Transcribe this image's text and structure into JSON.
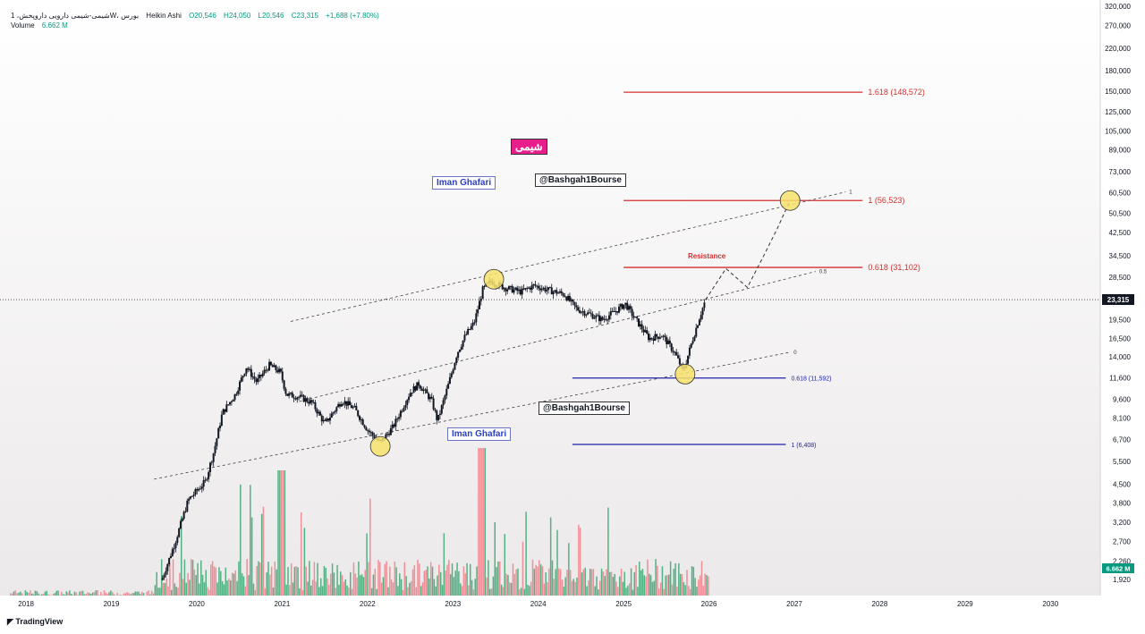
{
  "header": {
    "symbol": "شیمی-شیمی دارویی داروپخش، 1W، بورس",
    "chart_style": "Heikin Ashi",
    "open": "O20,546",
    "high": "H24,050",
    "low": "L20,546",
    "close": "C23,315",
    "change": "+1,688 (+7.80%)",
    "volume_label": "Volume",
    "volume_value": "6.662 M"
  },
  "watermarks": {
    "name_top": "Iman Ghafari",
    "handle_top": "@Bashgah1Bourse",
    "persian_badge": "شیمی",
    "handle_bottom": "@Bashgah1Bourse",
    "name_bottom": "Iman Ghafari"
  },
  "annotations": {
    "resistance": "Resistance",
    "channel_upper": "1",
    "channel_mid": "0.5",
    "channel_lower": "0"
  },
  "branding": {
    "logo": "TradingView"
  },
  "colors": {
    "up": "#089981",
    "down": "#f23645",
    "fib_red": "#d32f2f",
    "fib_blue": "#1e22aa",
    "circle": "#f7e26b",
    "price_tag": "#131722",
    "volume_tag": "#089981"
  },
  "chart_data": {
    "type": "line",
    "title": "",
    "scale": "log",
    "ylim": [
      1700,
      330000
    ],
    "xlim": [
      2017.8,
      2030.5
    ],
    "grid": false,
    "x_ticks": [
      "2018",
      "2019",
      "2020",
      "2021",
      "2022",
      "2023",
      "2024",
      "2025",
      "2026",
      "2027",
      "2028",
      "2029",
      "2030"
    ],
    "y_ticks": [
      "320,000",
      "270,000",
      "220,000",
      "180,000",
      "150,000",
      "125,000",
      "105,000",
      "89,000",
      "73,000",
      "60,500",
      "50,500",
      "42,500",
      "34,500",
      "28,500",
      "23,600",
      "19,500",
      "16,500",
      "14,000",
      "11,600",
      "9,600",
      "8,100",
      "6,700",
      "5,500",
      "4,500",
      "3,800",
      "3,200",
      "2,700",
      "2,260",
      "1,920"
    ],
    "last_price": 23315,
    "last_price_label": "23,315",
    "volume_label": "6.662 M",
    "series": [
      {
        "values": [
          [
            2019.6,
            1950
          ],
          [
            2019.75,
            2700
          ],
          [
            2019.9,
            3900
          ],
          [
            2020.1,
            4600
          ],
          [
            2020.2,
            6000
          ],
          [
            2020.3,
            8500
          ],
          [
            2020.45,
            10000
          ],
          [
            2020.58,
            12800
          ],
          [
            2020.7,
            11200
          ],
          [
            2020.85,
            13000
          ],
          [
            2020.98,
            12200
          ],
          [
            2021.05,
            10000
          ],
          [
            2021.2,
            9800
          ],
          [
            2021.35,
            9300
          ],
          [
            2021.5,
            7700
          ],
          [
            2021.7,
            9500
          ],
          [
            2021.85,
            8800
          ],
          [
            2022.0,
            7300
          ],
          [
            2022.15,
            6500
          ],
          [
            2022.3,
            7500
          ],
          [
            2022.5,
            10200
          ],
          [
            2022.6,
            11000
          ],
          [
            2022.75,
            9500
          ],
          [
            2022.82,
            7900
          ],
          [
            2022.95,
            11000
          ],
          [
            2023.05,
            14500
          ],
          [
            2023.15,
            17000
          ],
          [
            2023.25,
            19000
          ],
          [
            2023.35,
            25500
          ],
          [
            2023.45,
            27500
          ],
          [
            2023.6,
            26000
          ],
          [
            2023.8,
            25000
          ],
          [
            2023.95,
            26500
          ],
          [
            2024.1,
            25500
          ],
          [
            2024.3,
            24500
          ],
          [
            2024.45,
            21500
          ],
          [
            2024.6,
            20500
          ],
          [
            2024.75,
            19500
          ],
          [
            2024.9,
            21000
          ],
          [
            2025.02,
            22500
          ],
          [
            2025.12,
            20000
          ],
          [
            2025.3,
            16500
          ],
          [
            2025.45,
            17000
          ],
          [
            2025.6,
            14500
          ],
          [
            2025.7,
            12300
          ],
          [
            2025.8,
            16000
          ],
          [
            2025.88,
            19500
          ],
          [
            2025.96,
            23315
          ]
        ]
      }
    ],
    "projection_values": [
      [
        2025.96,
        23315
      ],
      [
        2026.2,
        30800
      ],
      [
        2026.45,
        26000
      ],
      [
        2026.65,
        35000
      ],
      [
        2026.8,
        44000
      ],
      [
        2026.95,
        56523
      ]
    ],
    "fib_levels": [
      {
        "label": "1.618 (148,572)",
        "value": 148572,
        "color": "#d32f2f",
        "from": 2025.0,
        "to": 2027.8
      },
      {
        "label": "1 (56,523)",
        "value": 56523,
        "color": "#d32f2f",
        "from": 2025.0,
        "to": 2027.8
      },
      {
        "label": "0.618 (31,102)",
        "value": 31102,
        "color": "#d32f2f",
        "from": 2025.0,
        "to": 2027.8
      },
      {
        "label": "0.618 (11,592)",
        "value": 11592,
        "color": "#1e22aa",
        "from": 2024.4,
        "to": 2026.9
      },
      {
        "label": "1 (6,408)",
        "value": 6408,
        "color": "#1e22aa",
        "from": 2024.4,
        "to": 2026.9
      }
    ],
    "channel_lines": [
      {
        "x1": 2021.1,
        "y1": 19200,
        "x2": 2027.6,
        "y2": 61000,
        "label": "1"
      },
      {
        "x1": 2021.2,
        "y1": 9400,
        "x2": 2027.25,
        "y2": 30000,
        "label": "0.5"
      },
      {
        "x1": 2019.5,
        "y1": 4700,
        "x2": 2026.95,
        "y2": 14600,
        "label": "0"
      }
    ],
    "highlight_points": [
      [
        2022.15,
        6300
      ],
      [
        2023.48,
        28000
      ],
      [
        2025.72,
        12000
      ],
      [
        2026.95,
        56523
      ]
    ]
  }
}
